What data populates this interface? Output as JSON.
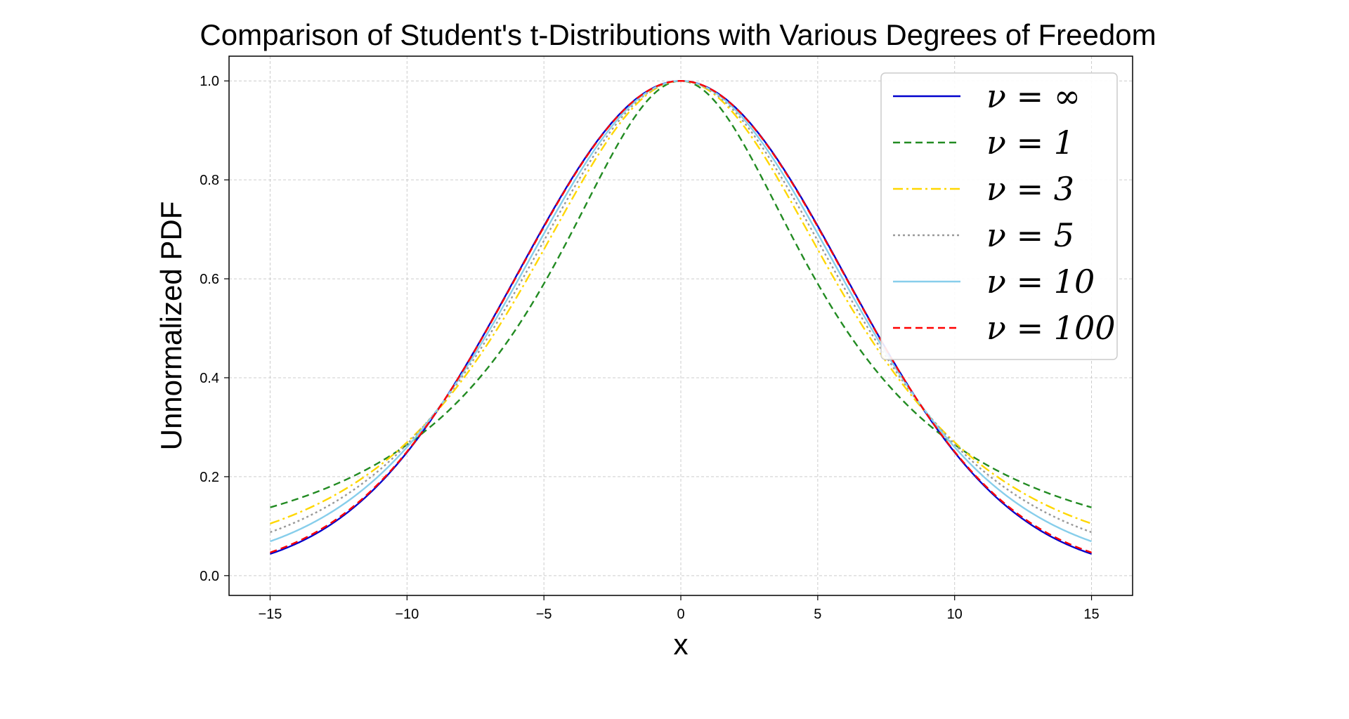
{
  "chart_data": {
    "type": "line",
    "title": "Comparison of Student's t-Distributions with Various Degrees of Freedom",
    "xlabel": "x",
    "ylabel": "Unnormalized PDF",
    "xlim": [
      -16.5,
      16.5
    ],
    "ylim": [
      -0.04,
      1.05
    ],
    "x_range": [
      -15,
      15
    ],
    "scale": 6,
    "x_ticks": [
      -15,
      -10,
      -5,
      0,
      5,
      10,
      15
    ],
    "x_tick_labels": [
      "−15",
      "−10",
      "−5",
      "0",
      "5",
      "10",
      "15"
    ],
    "y_ticks": [
      0.0,
      0.2,
      0.4,
      0.6,
      0.8,
      1.0
    ],
    "y_tick_labels": [
      "0.0",
      "0.2",
      "0.4",
      "0.6",
      "0.8",
      "1.0"
    ],
    "grid": true,
    "legend_position": "top-right",
    "series": [
      {
        "name": "ν = ∞",
        "df": null,
        "color": "#0000cd",
        "dash": ""
      },
      {
        "name": "ν = 1",
        "df": 1,
        "color": "#228b22",
        "dash": "10,6"
      },
      {
        "name": "ν = 3",
        "df": 3,
        "color": "#ffd700",
        "dash": "14,5,3,5"
      },
      {
        "name": "ν = 5",
        "df": 5,
        "color": "#999999",
        "dash": "3,4"
      },
      {
        "name": "ν = 10",
        "df": 10,
        "color": "#87ceeb",
        "dash": ""
      },
      {
        "name": "ν = 100",
        "df": 100,
        "color": "#ff0000",
        "dash": "10,6"
      }
    ]
  }
}
